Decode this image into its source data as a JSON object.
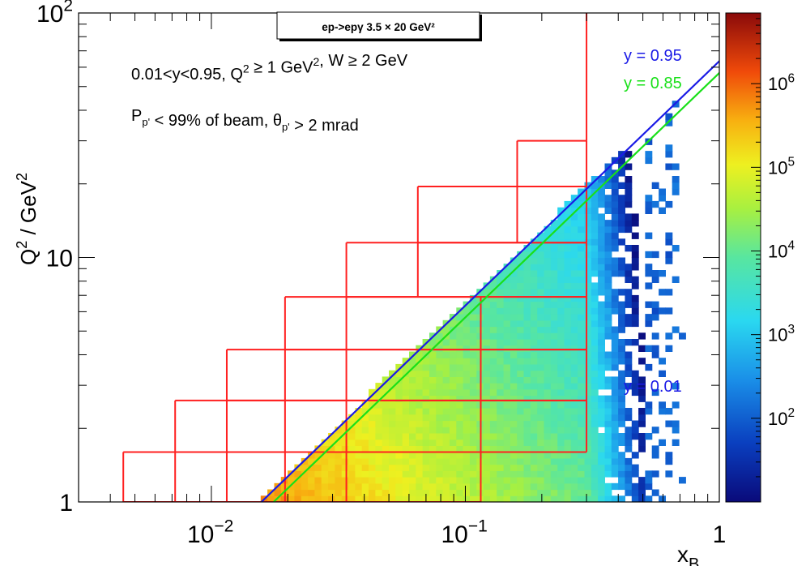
{
  "chart_data": {
    "type": "heatmap",
    "title": "ep->epγ 3.5 × 20 GeV²",
    "x_scale": "log",
    "y_scale": "log",
    "xlim": [
      0.003,
      1
    ],
    "ylim": [
      1,
      100
    ],
    "xlabel": {
      "base": "x",
      "sub": "B"
    },
    "ylabel": {
      "pre": "Q",
      "sup": "2",
      "post": " / GeV",
      "sup2": "2"
    },
    "x_ticks": [
      {
        "base": "10",
        "sup": "−2",
        "value": 0.01
      },
      {
        "base": "10",
        "sup": "−1",
        "value": 0.1
      },
      {
        "base": "1",
        "sup": "",
        "value": 1
      }
    ],
    "y_ticks": [
      {
        "base": "1",
        "sup": "",
        "value": 1
      },
      {
        "base": "10",
        "sup": "",
        "value": 10
      },
      {
        "base": "10",
        "sup": "2",
        "value": 100
      }
    ],
    "colorbar": {
      "scale": "log",
      "zlim": [
        10,
        7000000
      ],
      "ticks": [
        {
          "base": "10",
          "sup": "2",
          "value": 100
        },
        {
          "base": "10",
          "sup": "3",
          "value": 1000
        },
        {
          "base": "10",
          "sup": "4",
          "value": 10000
        },
        {
          "base": "10",
          "sup": "5",
          "value": 100000
        },
        {
          "base": "10",
          "sup": "6",
          "value": 1000000
        }
      ]
    },
    "cuts": {
      "line1": [
        {
          "t": "0.01<y<0.95, Q"
        },
        {
          "t": "2",
          "sup": true
        },
        {
          "t": " ≥ 1 GeV"
        },
        {
          "t": "2",
          "sup": true
        },
        {
          "t": ", W ≥ 2 GeV"
        }
      ],
      "line2": [
        {
          "t": "P"
        },
        {
          "t": "p'",
          "sub": true
        },
        {
          "t": " < 99% of beam, θ"
        },
        {
          "t": "p'",
          "sub": true
        },
        {
          "t": " > 2 mrad"
        }
      ]
    },
    "y_lines": [
      {
        "label": "y = 0.95",
        "y": 0.95,
        "color": "#1a1ae6"
      },
      {
        "label": "y = 0.85",
        "y": 0.85,
        "color": "#19e019"
      },
      {
        "label": "y = 0.01",
        "y": 0.01,
        "color": "#1a1ae6"
      }
    ],
    "bin_color": "#ff2020",
    "q2_edges": [
      1,
      1.6,
      2.6,
      4.2,
      6.9,
      11.5,
      19.5,
      30,
      100
    ],
    "bins": [
      {
        "q2": [
          1,
          1.6
        ],
        "x_edges": [
          0.0045,
          0.0072,
          0.0115,
          0.0195,
          0.034,
          0.115
        ]
      },
      {
        "q2": [
          1.6,
          2.6
        ],
        "x_edges": [
          0.0072,
          0.0115,
          0.0195,
          0.034,
          0.115,
          0.3
        ]
      },
      {
        "q2": [
          2.6,
          4.2
        ],
        "x_edges": [
          0.0115,
          0.0195,
          0.034,
          0.115,
          0.3
        ]
      },
      {
        "q2": [
          4.2,
          6.9
        ],
        "x_edges": [
          0.0195,
          0.034,
          0.115,
          0.3
        ]
      },
      {
        "q2": [
          6.9,
          11.5
        ],
        "x_edges": [
          0.034,
          0.065,
          0.3
        ]
      },
      {
        "q2": [
          11.5,
          19.5
        ],
        "x_edges": [
          0.065,
          0.16,
          0.3
        ]
      },
      {
        "q2": [
          19.5,
          30
        ],
        "x_edges": [
          0.16,
          0.3
        ]
      },
      {
        "q2": [
          30,
          100
        ],
        "x_edges": [
          0.3
        ]
      }
    ]
  }
}
